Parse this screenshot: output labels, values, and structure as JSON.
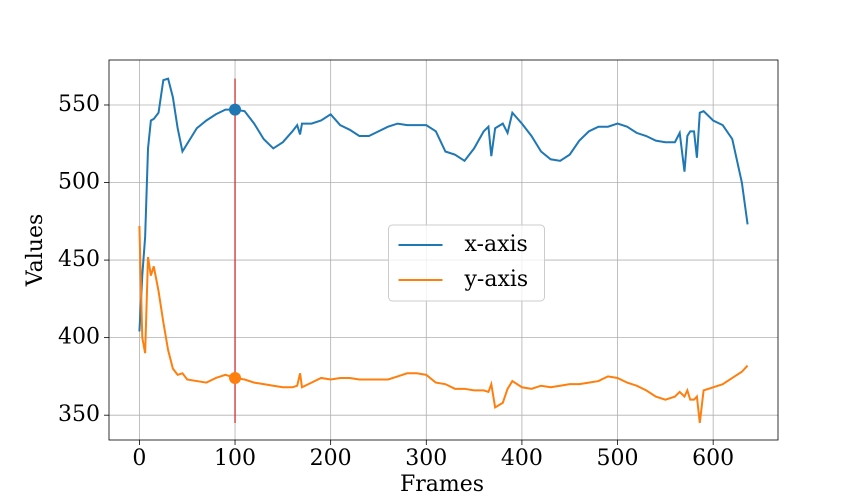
{
  "chart_data": {
    "type": "line",
    "x_label": "Frames",
    "y_label": "Values",
    "x": [
      0,
      3,
      6,
      9,
      12,
      15,
      20,
      25,
      30,
      35,
      40,
      45,
      50,
      60,
      70,
      80,
      90,
      100,
      110,
      120,
      130,
      140,
      150,
      160,
      165,
      168,
      170,
      180,
      190,
      200,
      210,
      220,
      230,
      240,
      250,
      260,
      270,
      280,
      290,
      300,
      310,
      320,
      330,
      340,
      350,
      360,
      365,
      368,
      372,
      380,
      385,
      390,
      400,
      410,
      420,
      430,
      440,
      450,
      460,
      470,
      480,
      490,
      500,
      510,
      520,
      530,
      540,
      550,
      560,
      565,
      570,
      573,
      576,
      580,
      583,
      586,
      590,
      600,
      610,
      620,
      630,
      636
    ],
    "series": [
      {
        "name": "x-axis",
        "color": "#1f77b4",
        "values": [
          404,
          440,
          465,
          522,
          540,
          541,
          545,
          566,
          567,
          555,
          535,
          520,
          525,
          535,
          540,
          544,
          547,
          547,
          546,
          538,
          528,
          522,
          526,
          533,
          537,
          531,
          538,
          538,
          540,
          544,
          537,
          534,
          530,
          530,
          533,
          536,
          538,
          537,
          537,
          537,
          533,
          520,
          518,
          514,
          522,
          533,
          536,
          517,
          535,
          538,
          532,
          545,
          538,
          530,
          520,
          515,
          514,
          518,
          527,
          533,
          536,
          536,
          538,
          536,
          532,
          530,
          527,
          526,
          526,
          532,
          507,
          530,
          533,
          533,
          516,
          545,
          546,
          540,
          537,
          528,
          500,
          473
        ]
      },
      {
        "name": "y-axis",
        "color": "#ff7f0e",
        "values": [
          472,
          400,
          390,
          452,
          440,
          446,
          430,
          410,
          392,
          380,
          376,
          377,
          373,
          372,
          371,
          374,
          376,
          374,
          373,
          371,
          370,
          369,
          368,
          368,
          369,
          377,
          368,
          371,
          374,
          373,
          374,
          374,
          373,
          373,
          373,
          373,
          375,
          377,
          377,
          376,
          371,
          370,
          367,
          367,
          366,
          366,
          365,
          370,
          355,
          358,
          367,
          372,
          368,
          367,
          369,
          368,
          369,
          370,
          370,
          371,
          372,
          375,
          374,
          371,
          369,
          366,
          362,
          360,
          362,
          365,
          362,
          366,
          360,
          360,
          362,
          345,
          366,
          368,
          370,
          374,
          378,
          382
        ]
      }
    ],
    "marker_frame": 100,
    "marker_values": [
      547,
      374
    ],
    "vline": {
      "x": 100,
      "ymin": 345,
      "ymax": 567,
      "color": "#d62728"
    },
    "xlim": [
      -31.8,
      667.8
    ],
    "ylim": [
      334,
      579
    ],
    "xticks": [
      0,
      100,
      200,
      300,
      400,
      500,
      600
    ],
    "yticks": [
      350,
      400,
      450,
      500,
      550
    ],
    "grid": true,
    "legend": "center"
  }
}
